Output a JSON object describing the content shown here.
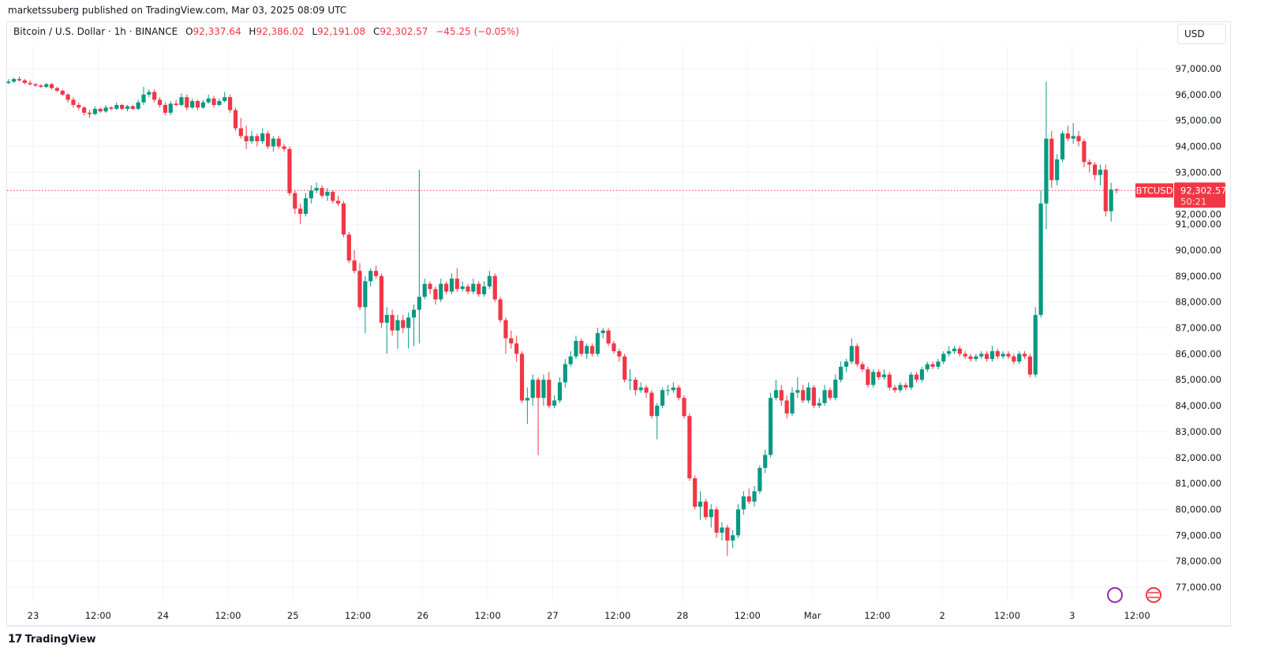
{
  "published": "marketssuberg published on TradingView.com, Mar 03, 2025 08:09 UTC",
  "legend": {
    "symbol": "Bitcoin / U.S. Dollar · 1h · BINANCE",
    "o_label": "O",
    "o": "92,337.64",
    "h_label": "H",
    "h": "92,386.02",
    "l_label": "L",
    "l": "92,191.08",
    "c_label": "C",
    "c": "92,302.57",
    "change": "−45.25 (−0.05%)"
  },
  "currency_button": "USD",
  "brand": "TradingView",
  "colors": {
    "up": "#089981",
    "down": "#f23645",
    "grid": "#f0f3fa"
  },
  "chart_data": {
    "type": "candlestick",
    "interval": "1h",
    "y_ticks": [
      "97,000.00",
      "96,000.00",
      "95,000.00",
      "94,000.00",
      "93,000.00",
      "92,000.00",
      "91,000.00",
      "90,000.00",
      "89,000.00",
      "88,000.00",
      "87,000.00",
      "86,000.00",
      "85,000.00",
      "84,000.00",
      "83,000.00",
      "82,000.00",
      "81,000.00",
      "80,000.00",
      "79,000.00",
      "78,000.00",
      "77,000.00"
    ],
    "ylim": [
      77000,
      97000
    ],
    "x_ticks": [
      "23",
      "12:00",
      "24",
      "12:00",
      "25",
      "12:00",
      "26",
      "12:00",
      "27",
      "12:00",
      "28",
      "12:00",
      "Mar",
      "12:00",
      "2",
      "12:00",
      "3",
      "12:00"
    ],
    "grid": true,
    "last_price": {
      "symbol": "BTCUSD",
      "price": "92,302.57",
      "value": 92302.57,
      "countdown": "50:21"
    },
    "ohlc": [
      [
        96450,
        96600,
        96400,
        96500
      ],
      [
        96500,
        96650,
        96450,
        96600
      ],
      [
        96600,
        96700,
        96500,
        96550
      ],
      [
        96550,
        96600,
        96400,
        96450
      ],
      [
        96450,
        96550,
        96350,
        96400
      ],
      [
        96400,
        96450,
        96300,
        96350
      ],
      [
        96350,
        96400,
        96250,
        96300
      ],
      [
        96300,
        96450,
        96250,
        96400
      ],
      [
        96400,
        96450,
        96200,
        96250
      ],
      [
        96250,
        96300,
        96100,
        96150
      ],
      [
        96150,
        96200,
        95950,
        96000
      ],
      [
        96000,
        96050,
        95700,
        95800
      ],
      [
        95800,
        95900,
        95500,
        95600
      ],
      [
        95600,
        95700,
        95400,
        95500
      ],
      [
        95500,
        95550,
        95200,
        95300
      ],
      [
        95300,
        95400,
        95100,
        95250
      ],
      [
        95250,
        95550,
        95200,
        95450
      ],
      [
        95450,
        95500,
        95300,
        95350
      ],
      [
        95350,
        95600,
        95300,
        95500
      ],
      [
        95500,
        95550,
        95400,
        95450
      ],
      [
        95450,
        95700,
        95400,
        95600
      ],
      [
        95600,
        95650,
        95400,
        95450
      ],
      [
        95450,
        95600,
        95350,
        95550
      ],
      [
        95550,
        95600,
        95400,
        95450
      ],
      [
        95450,
        95800,
        95400,
        95700
      ],
      [
        95700,
        96300,
        95600,
        96000
      ],
      [
        96000,
        96200,
        95900,
        96100
      ],
      [
        96100,
        96200,
        95700,
        95800
      ],
      [
        95800,
        95900,
        95500,
        95600
      ],
      [
        95600,
        95700,
        95200,
        95300
      ],
      [
        95300,
        95750,
        95200,
        95650
      ],
      [
        95650,
        95800,
        95550,
        95600
      ],
      [
        95600,
        96050,
        95550,
        95900
      ],
      [
        95900,
        96000,
        95400,
        95500
      ],
      [
        95500,
        95850,
        95450,
        95750
      ],
      [
        95750,
        95800,
        95400,
        95500
      ],
      [
        95500,
        95800,
        95450,
        95700
      ],
      [
        95700,
        96000,
        95650,
        95850
      ],
      [
        95850,
        95950,
        95500,
        95600
      ],
      [
        95600,
        95850,
        95550,
        95750
      ],
      [
        95750,
        96100,
        95700,
        95900
      ],
      [
        95900,
        96000,
        95300,
        95400
      ],
      [
        95400,
        95500,
        94600,
        94700
      ],
      [
        94700,
        95100,
        94300,
        94400
      ],
      [
        94400,
        94800,
        93900,
        94200
      ],
      [
        94200,
        94600,
        94100,
        94400
      ],
      [
        94400,
        94500,
        94000,
        94200
      ],
      [
        94200,
        94700,
        94100,
        94500
      ],
      [
        94500,
        94600,
        93900,
        94000
      ],
      [
        94000,
        94400,
        93800,
        94300
      ],
      [
        94300,
        94400,
        93900,
        94000
      ],
      [
        94000,
        94100,
        93800,
        93900
      ],
      [
        93900,
        94000,
        92100,
        92200
      ],
      [
        92200,
        92300,
        91400,
        91600
      ],
      [
        91600,
        91800,
        91000,
        91400
      ],
      [
        91400,
        92200,
        91300,
        92000
      ],
      [
        92000,
        92500,
        91800,
        92300
      ],
      [
        92300,
        92600,
        92200,
        92400
      ],
      [
        92400,
        92500,
        92000,
        92100
      ],
      [
        92100,
        92400,
        91900,
        92250
      ],
      [
        92250,
        92300,
        91800,
        91900
      ],
      [
        91900,
        92100,
        91700,
        91800
      ],
      [
        91800,
        91900,
        90500,
        90600
      ],
      [
        90600,
        90700,
        89500,
        89600
      ],
      [
        89600,
        90000,
        89100,
        89200
      ],
      [
        89200,
        89500,
        87700,
        87800
      ],
      [
        87800,
        89000,
        86800,
        88800
      ],
      [
        88800,
        89300,
        88600,
        89200
      ],
      [
        89200,
        89400,
        88900,
        89000
      ],
      [
        89000,
        89100,
        87000,
        87200
      ],
      [
        87200,
        87800,
        86000,
        87500
      ],
      [
        87500,
        87700,
        86700,
        86900
      ],
      [
        86900,
        87500,
        86200,
        87300
      ],
      [
        87300,
        87500,
        86800,
        87000
      ],
      [
        87000,
        87600,
        86200,
        87400
      ],
      [
        87400,
        87900,
        86300,
        87700
      ],
      [
        87700,
        93100,
        86400,
        88200
      ],
      [
        88200,
        88900,
        88100,
        88700
      ],
      [
        88700,
        88800,
        88300,
        88500
      ],
      [
        88500,
        88600,
        87900,
        88100
      ],
      [
        88100,
        88900,
        88000,
        88700
      ],
      [
        88700,
        88800,
        88300,
        88400
      ],
      [
        88400,
        89100,
        88300,
        88900
      ],
      [
        88900,
        89300,
        88400,
        88500
      ],
      [
        88500,
        88800,
        88400,
        88600
      ],
      [
        88600,
        88700,
        88300,
        88400
      ],
      [
        88400,
        88900,
        88300,
        88700
      ],
      [
        88700,
        88800,
        88200,
        88300
      ],
      [
        88300,
        88800,
        88200,
        88600
      ],
      [
        88600,
        89200,
        88500,
        89000
      ],
      [
        89000,
        89100,
        88000,
        88100
      ],
      [
        88100,
        88200,
        87200,
        87300
      ],
      [
        87300,
        87400,
        86000,
        86600
      ],
      [
        86600,
        86900,
        86200,
        86400
      ],
      [
        86400,
        86700,
        85700,
        86000
      ],
      [
        86000,
        86100,
        84100,
        84200
      ],
      [
        84200,
        84700,
        83300,
        84300
      ],
      [
        84300,
        85200,
        84000,
        85000
      ],
      [
        85000,
        85100,
        82100,
        84300
      ],
      [
        84300,
        85200,
        84000,
        85000
      ],
      [
        85000,
        85300,
        83900,
        84000
      ],
      [
        84000,
        84400,
        83900,
        84200
      ],
      [
        84200,
        85100,
        84100,
        84900
      ],
      [
        84900,
        85800,
        84700,
        85600
      ],
      [
        85600,
        86100,
        85500,
        85900
      ],
      [
        85900,
        86700,
        85800,
        86500
      ],
      [
        86500,
        86600,
        85900,
        86000
      ],
      [
        86000,
        86400,
        85800,
        86300
      ],
      [
        86300,
        86400,
        85900,
        86000
      ],
      [
        86000,
        87000,
        85900,
        86800
      ],
      [
        86800,
        87000,
        86600,
        86900
      ],
      [
        86900,
        87000,
        86300,
        86400
      ],
      [
        86400,
        86500,
        86000,
        86100
      ],
      [
        86100,
        86200,
        85700,
        85900
      ],
      [
        85900,
        86000,
        84900,
        85000
      ],
      [
        85000,
        85400,
        84600,
        85000
      ],
      [
        85000,
        85100,
        84400,
        84600
      ],
      [
        84600,
        84900,
        84500,
        84700
      ],
      [
        84700,
        84800,
        84300,
        84500
      ],
      [
        84500,
        84600,
        83500,
        83600
      ],
      [
        83600,
        84100,
        82700,
        84000
      ],
      [
        84000,
        84700,
        83900,
        84600
      ],
      [
        84600,
        84800,
        84400,
        84600
      ],
      [
        84600,
        84900,
        84500,
        84700
      ],
      [
        84700,
        84800,
        84200,
        84300
      ],
      [
        84300,
        84400,
        83500,
        83600
      ],
      [
        83600,
        83700,
        81100,
        81200
      ],
      [
        81200,
        81300,
        80000,
        80100
      ],
      [
        80100,
        80700,
        79600,
        80300
      ],
      [
        80300,
        80400,
        79600,
        79700
      ],
      [
        79700,
        80200,
        79300,
        80000
      ],
      [
        80000,
        80100,
        78900,
        79100
      ],
      [
        79100,
        79500,
        78800,
        79300
      ],
      [
        79300,
        79400,
        78200,
        78800
      ],
      [
        78800,
        79200,
        78500,
        79000
      ],
      [
        79000,
        80200,
        78900,
        80000
      ],
      [
        80000,
        80700,
        79800,
        80500
      ],
      [
        80500,
        80800,
        80200,
        80300
      ],
      [
        80300,
        80900,
        80100,
        80700
      ],
      [
        80700,
        81700,
        80600,
        81600
      ],
      [
        81600,
        82300,
        81400,
        82100
      ],
      [
        82100,
        84500,
        82000,
        84300
      ],
      [
        84300,
        85000,
        84200,
        84600
      ],
      [
        84600,
        84800,
        84000,
        84200
      ],
      [
        84200,
        84400,
        83500,
        83700
      ],
      [
        83700,
        84700,
        83600,
        84500
      ],
      [
        84500,
        85100,
        84300,
        84600
      ],
      [
        84600,
        84800,
        84100,
        84200
      ],
      [
        84200,
        84900,
        84100,
        84700
      ],
      [
        84700,
        84800,
        83900,
        84000
      ],
      [
        84000,
        84300,
        83900,
        84100
      ],
      [
        84100,
        84800,
        84000,
        84600
      ],
      [
        84600,
        84700,
        84200,
        84300
      ],
      [
        84300,
        85200,
        84200,
        85000
      ],
      [
        85000,
        85700,
        84900,
        85500
      ],
      [
        85500,
        85800,
        85300,
        85700
      ],
      [
        85700,
        86600,
        85600,
        86300
      ],
      [
        86300,
        86400,
        85500,
        85600
      ],
      [
        85600,
        85700,
        85300,
        85400
      ],
      [
        85400,
        85500,
        84700,
        84800
      ],
      [
        84800,
        85400,
        84700,
        85300
      ],
      [
        85300,
        85400,
        85000,
        85100
      ],
      [
        85100,
        85400,
        85000,
        85200
      ],
      [
        85200,
        85300,
        84600,
        84700
      ],
      [
        84700,
        84800,
        84500,
        84600
      ],
      [
        84600,
        84900,
        84500,
        84800
      ],
      [
        84800,
        84900,
        84600,
        84700
      ],
      [
        84700,
        85300,
        84600,
        85200
      ],
      [
        85200,
        85300,
        84900,
        85000
      ],
      [
        85000,
        85500,
        84900,
        85400
      ],
      [
        85400,
        85700,
        85300,
        85600
      ],
      [
        85600,
        85700,
        85400,
        85500
      ],
      [
        85500,
        85800,
        85400,
        85700
      ],
      [
        85700,
        86100,
        85600,
        86000
      ],
      [
        86000,
        86300,
        85900,
        86100
      ],
      [
        86100,
        86300,
        86000,
        86200
      ],
      [
        86200,
        86300,
        85900,
        86000
      ],
      [
        86000,
        86100,
        85800,
        85900
      ],
      [
        85900,
        86000,
        85700,
        85800
      ],
      [
        85800,
        86000,
        85700,
        85900
      ],
      [
        85900,
        86100,
        85800,
        86000
      ],
      [
        86000,
        86100,
        85700,
        85800
      ],
      [
        85800,
        86300,
        85700,
        86100
      ],
      [
        86100,
        86200,
        85800,
        85900
      ],
      [
        85900,
        86100,
        85800,
        86000
      ],
      [
        86000,
        86100,
        85800,
        85900
      ],
      [
        85900,
        86000,
        85600,
        85700
      ],
      [
        85700,
        86100,
        85600,
        86000
      ],
      [
        86000,
        86100,
        85800,
        85900
      ],
      [
        85900,
        86000,
        85100,
        85200
      ],
      [
        85200,
        87800,
        85100,
        87500
      ],
      [
        87500,
        92300,
        87400,
        91800
      ],
      [
        91800,
        96500,
        90800,
        94300
      ],
      [
        94300,
        94600,
        92400,
        92700
      ],
      [
        92700,
        93700,
        92500,
        93500
      ],
      [
        93500,
        94600,
        93400,
        94500
      ],
      [
        94500,
        94800,
        94200,
        94300
      ],
      [
        94300,
        94900,
        94100,
        94400
      ],
      [
        94400,
        94600,
        94000,
        94200
      ],
      [
        94200,
        94300,
        93200,
        93400
      ],
      [
        93400,
        93500,
        93000,
        93300
      ],
      [
        93300,
        93400,
        92700,
        92900
      ],
      [
        92900,
        93300,
        92500,
        93100
      ],
      [
        93100,
        93300,
        91300,
        91500
      ],
      [
        91500,
        92600,
        91100,
        92337.64
      ],
      [
        92337.64,
        92386.02,
        92191.08,
        92302.57
      ]
    ]
  }
}
